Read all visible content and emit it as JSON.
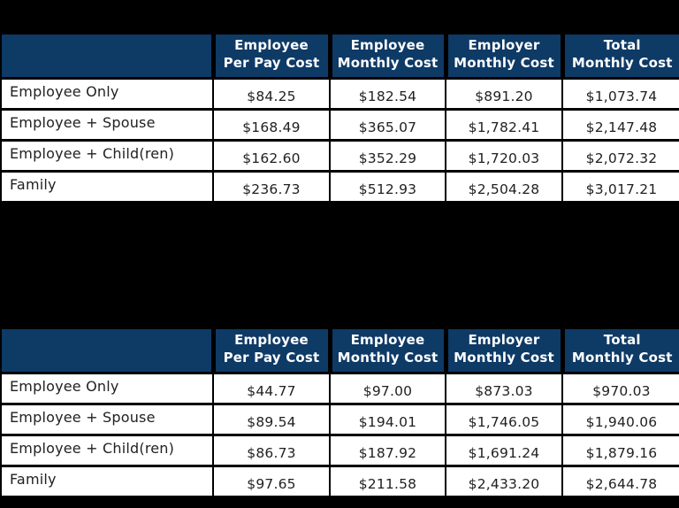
{
  "colors": {
    "background": "#000000",
    "header_bg": "#0e3a66",
    "header_text": "#ffffff",
    "cell_bg": "#ffffff",
    "cell_text": "#212121",
    "border": "#000000"
  },
  "tables": [
    {
      "name": "cost-table-1",
      "headers": [
        {
          "line1": "Employee",
          "line2": "Per Pay Cost"
        },
        {
          "line1": "Employee",
          "line2": "Monthly Cost"
        },
        {
          "line1": "Employer",
          "line2": "Monthly Cost"
        },
        {
          "line1": "Total",
          "line2": "Monthly Cost"
        }
      ],
      "rows": [
        {
          "label": "Employee Only",
          "values": [
            "$84.25",
            "$182.54",
            "$891.20",
            "$1,073.74"
          ]
        },
        {
          "label": "Employee + Spouse",
          "values": [
            "$168.49",
            "$365.07",
            "$1,782.41",
            "$2,147.48"
          ]
        },
        {
          "label": "Employee + Child(ren)",
          "values": [
            "$162.60",
            "$352.29",
            "$1,720.03",
            "$2,072.32"
          ]
        },
        {
          "label": "Family",
          "values": [
            "$236.73",
            "$512.93",
            "$2,504.28",
            "$3,017.21"
          ]
        }
      ]
    },
    {
      "name": "cost-table-2",
      "headers": [
        {
          "line1": "Employee",
          "line2": "Per Pay Cost"
        },
        {
          "line1": "Employee",
          "line2": "Monthly Cost"
        },
        {
          "line1": "Employer",
          "line2": "Monthly Cost"
        },
        {
          "line1": "Total",
          "line2": "Monthly Cost"
        }
      ],
      "rows": [
        {
          "label": "Employee Only",
          "values": [
            "$44.77",
            "$97.00",
            "$873.03",
            "$970.03"
          ]
        },
        {
          "label": "Employee + Spouse",
          "values": [
            "$89.54",
            "$194.01",
            "$1,746.05",
            "$1,940.06"
          ]
        },
        {
          "label": "Employee + Child(ren)",
          "values": [
            "$86.73",
            "$187.92",
            "$1,691.24",
            "$1,879.16"
          ]
        },
        {
          "label": "Family",
          "values": [
            "$97.65",
            "$211.58",
            "$2,433.20",
            "$2,644.78"
          ]
        }
      ]
    }
  ]
}
